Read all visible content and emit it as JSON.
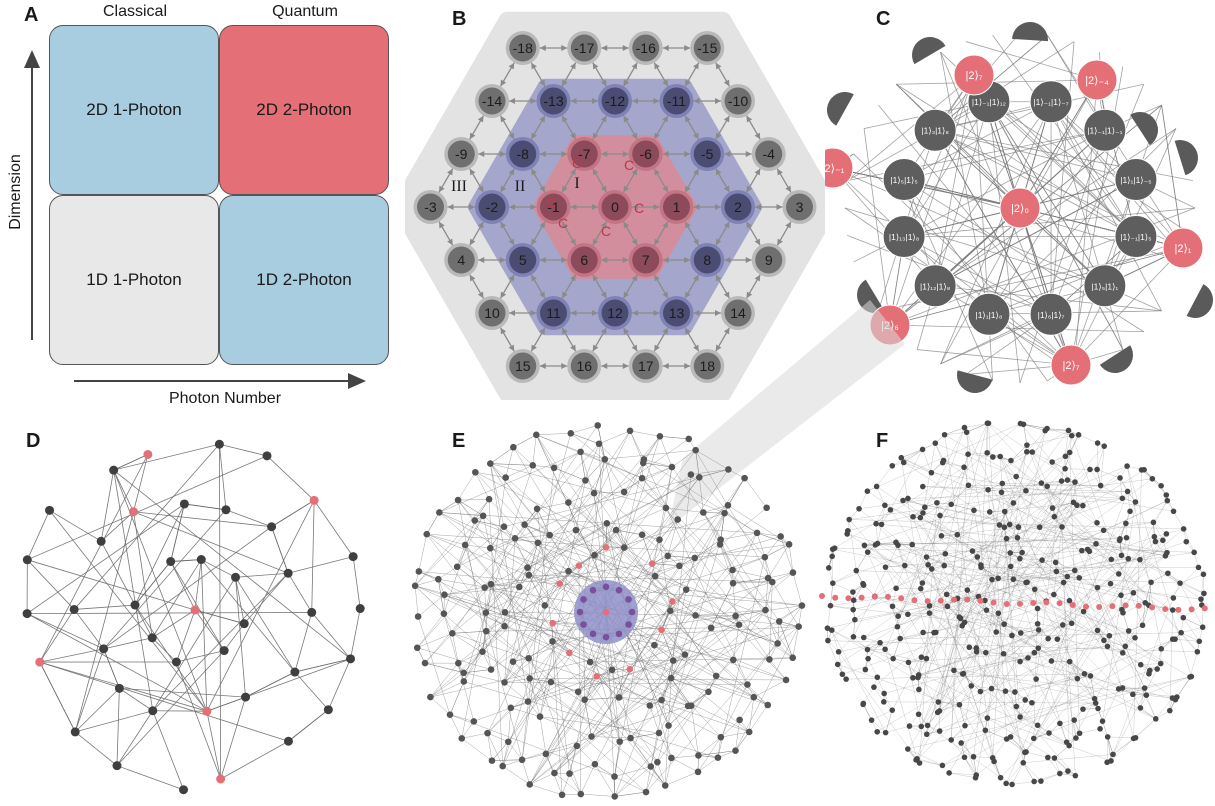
{
  "panels": {
    "a": {
      "letter": "A",
      "col_headers": [
        "Classical",
        "Quantum"
      ],
      "cells": [
        "2D 1-Photon",
        "2D 2-Photon",
        "1D 1-Photon",
        "1D 2-Photon"
      ],
      "y_axis_label": "Dimension",
      "x_axis_label": "Photon Number",
      "colors": {
        "blue": "#a8cce0",
        "red": "#e46f76",
        "grey": "#e8e8e8"
      }
    },
    "b": {
      "letter": "B",
      "rows": [
        [
          "-18",
          "-17",
          "-16",
          "-15"
        ],
        [
          "-14",
          "-13",
          "-12",
          "-11",
          "-10"
        ],
        [
          "-9",
          "-8",
          "-7",
          "-6",
          "-5",
          "-4"
        ],
        [
          "-3",
          "-2",
          "-1",
          "0",
          "1",
          "2",
          "3"
        ],
        [
          "4",
          "5",
          "6",
          "7",
          "8",
          "9"
        ],
        [
          "10",
          "11",
          "12",
          "13",
          "14"
        ],
        [
          "15",
          "16",
          "17",
          "18"
        ]
      ],
      "region_labels": [
        "I",
        "II",
        "III"
      ],
      "coupling_label": "C",
      "colors": {
        "outer": "#e3e3e3",
        "middle": "#9a9cc9",
        "inner": "#d98c98",
        "node": "#6e6e6e"
      }
    },
    "c": {
      "letter": "C",
      "center_state": "|2⟩₀",
      "red_states": [
        "|2⟩₇",
        "|2⟩₋₄",
        "|2⟩₋₁",
        "|2⟩₁",
        "|2⟩₆",
        "|2⟩₇"
      ],
      "grey_states": [
        "|1⟩₋₁|1⟩₋₇",
        "|1⟩₋₁|1⟩₋₁",
        "|1⟩₁|1⟩₋₅",
        "|1⟩₋₁|1⟩₅",
        "|1⟩₅|1⟩₁",
        "|1⟩₆|1⟩₇",
        "|1⟩₁|1⟩₈",
        "|1⟩₁₂|1⟩₈",
        "|1⟩₁₃|1⟩₈",
        "|1⟩₅|1⟩₅",
        "|1⟩₃|1⟩₈",
        "|1⟩₋₁|1⟩₁₂"
      ],
      "colors": {
        "red": "#e46f76",
        "grey": "#5e5e5e"
      }
    },
    "d": {
      "letter": "D"
    },
    "e": {
      "letter": "E"
    },
    "f": {
      "letter": "F"
    }
  }
}
